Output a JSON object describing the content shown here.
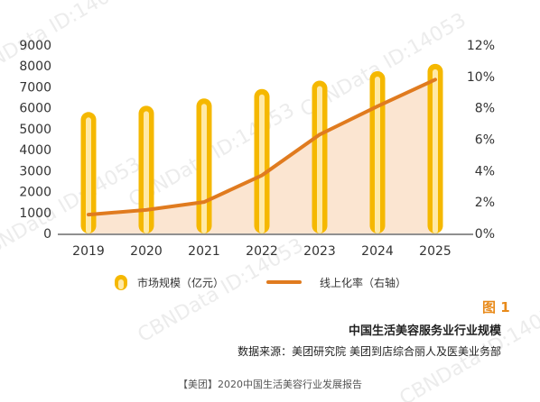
{
  "watermark": "CBNData ID:14053",
  "legend": {
    "bar_label": "市场规模（亿元）",
    "line_label": "线上化率（右轴）"
  },
  "figure_label": "图 1",
  "title": "中国生活美容服务业行业规模",
  "source": "数据来源：美团研究院  美团到店综合丽人及医美业务部",
  "caption": "【美团】2020中国生活美容行业发展报告",
  "colors": {
    "bar_outer": "#f5b800",
    "bar_inner": "#ffe9a6",
    "line": "#e07b1f",
    "area": "#f9dcc2"
  },
  "chart_data": {
    "type": "bar",
    "categories": [
      "2019",
      "2020",
      "2021",
      "2022",
      "2023",
      "2024",
      "2025"
    ],
    "series": [
      {
        "name": "市场规模（亿元）",
        "type": "bar",
        "axis": "left",
        "values": [
          5800,
          6100,
          6450,
          6900,
          7300,
          7750,
          8100
        ]
      },
      {
        "name": "线上化率（右轴）",
        "type": "line",
        "axis": "right",
        "values": [
          1.2,
          1.5,
          2.0,
          3.7,
          6.3,
          8.1,
          9.8
        ]
      }
    ],
    "ylim": [
      0,
      9000
    ],
    "y_ticks": [
      "0",
      "1000",
      "2000",
      "3000",
      "4000",
      "5000",
      "6000",
      "7000",
      "8000",
      "9000"
    ],
    "y2lim": [
      0,
      12
    ],
    "y2_ticks": [
      "0%",
      "2%",
      "4%",
      "6%",
      "8%",
      "10%",
      "12%"
    ],
    "grid": false,
    "legend_position": "bottom"
  }
}
